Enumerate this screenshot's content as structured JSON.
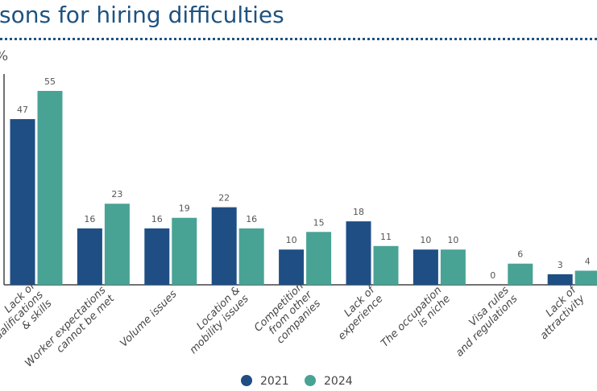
{
  "title": "sons for hiring difficulties",
  "chart_data": {
    "type": "bar",
    "title": "sons for hiring difficulties",
    "ylabel": "%",
    "ylim": [
      0,
      60
    ],
    "grid": false,
    "legend_position": "bottom",
    "categories": [
      [
        "Lack of",
        "qualifications",
        "& skills"
      ],
      [
        "Worker expectations",
        "cannot be met"
      ],
      [
        "Volume issues"
      ],
      [
        "Location &",
        "mobility issues"
      ],
      [
        "Competition",
        "from other",
        "companies"
      ],
      [
        "Lack of",
        "experience"
      ],
      [
        "The occupation",
        "is niche"
      ],
      [
        "Visa rules",
        "and regulations"
      ],
      [
        "Lack of",
        "attractivity"
      ]
    ],
    "series": [
      {
        "name": "2021",
        "color": "#1f4e85",
        "values": [
          47,
          16,
          16,
          22,
          10,
          18,
          10,
          0,
          3
        ]
      },
      {
        "name": "2024",
        "color": "#48a394",
        "values": [
          55,
          23,
          19,
          16,
          15,
          11,
          10,
          6,
          4
        ]
      }
    ]
  }
}
